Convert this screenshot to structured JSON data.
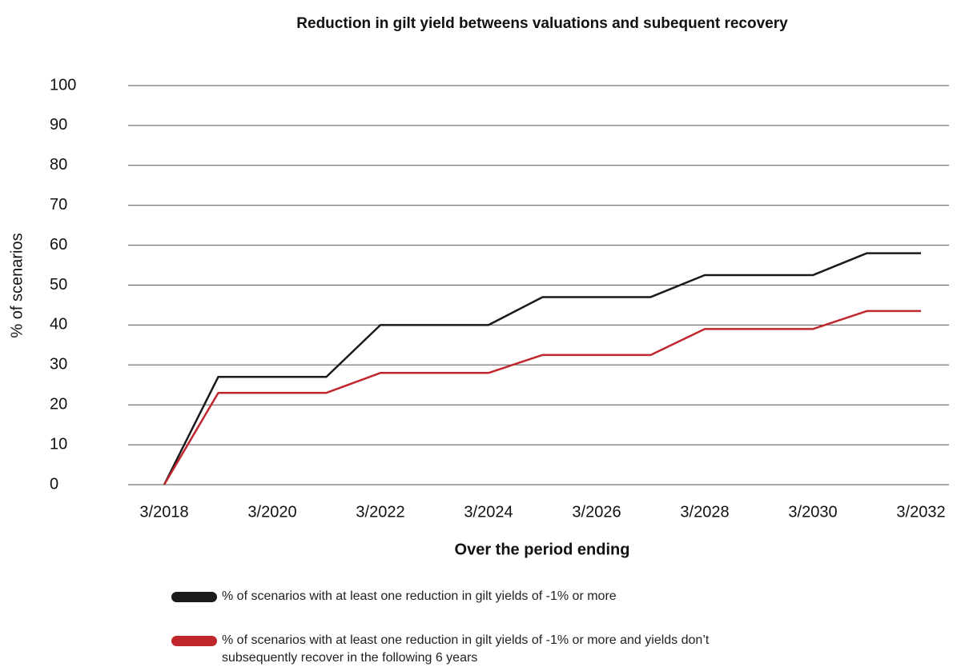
{
  "chart_data": {
    "type": "line",
    "title": "Reduction in gilt yield betweens valuations and subequent recovery",
    "x_label": "Over the period ending",
    "y_label": "% of scenarios",
    "categories": [
      "3/2018",
      null,
      "3/2020",
      null,
      "3/2022",
      null,
      "3/2024",
      null,
      "3/2026",
      null,
      "3/2028",
      null,
      "3/2030",
      null,
      "3/2032"
    ],
    "series": [
      {
        "name": "% of scenarios with at least one reduction in gilt yields of -1% or more",
        "color": "#1a1a1a",
        "values": [
          0,
          27,
          27,
          27,
          40,
          40,
          40,
          47,
          47,
          47,
          52.5,
          52.5,
          52.5,
          58,
          58
        ]
      },
      {
        "name": "% of scenarios with at least one reduction in gilt yields of -1% or more and yields don’t subsequently recover in the following 6 years",
        "color": "#c0272d",
        "values": [
          0,
          23,
          23,
          23,
          28,
          28,
          28,
          32.5,
          32.5,
          32.5,
          39,
          39,
          39,
          43.5,
          43.5
        ]
      }
    ],
    "ylim": [
      0,
      100
    ],
    "yticks": [
      0,
      10,
      20,
      30,
      40,
      50,
      60,
      70,
      80,
      90,
      100
    ],
    "grid": true,
    "legend": "bottom"
  }
}
